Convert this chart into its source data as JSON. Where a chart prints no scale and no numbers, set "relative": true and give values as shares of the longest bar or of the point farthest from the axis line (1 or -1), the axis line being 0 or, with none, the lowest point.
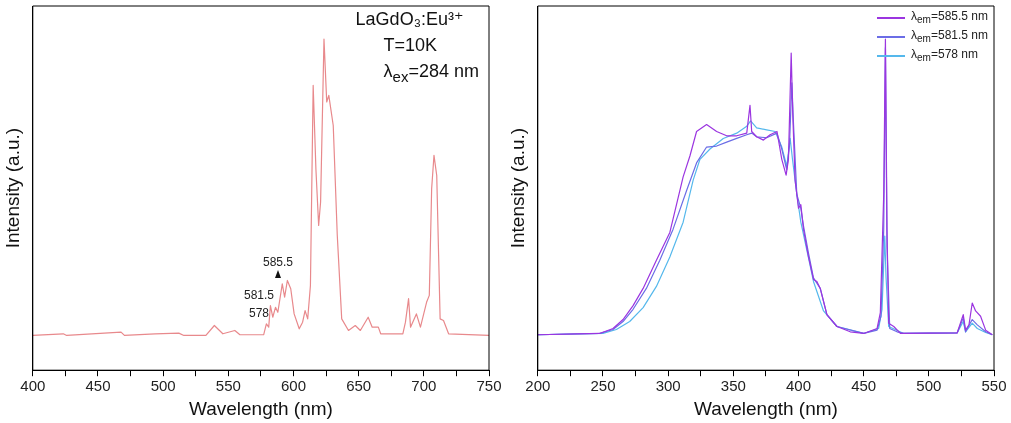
{
  "chart_data": [
    {
      "type": "line",
      "relative": true,
      "xlabel": "Wavelength (nm)",
      "ylabel": "Intensity (a.u.)",
      "tick_labels": "x",
      "marker": "none",
      "line_style": "solid",
      "legend": false,
      "xlim": [
        400,
        750
      ],
      "xticks": [
        400,
        {
          "value": 425,
          "label": null
        },
        450,
        {
          "value": 475,
          "label": null
        },
        500,
        {
          "value": 525,
          "label": null
        },
        550,
        {
          "value": 575,
          "label": null
        },
        600,
        {
          "value": 625,
          "label": null
        },
        650,
        {
          "value": 675,
          "label": null
        },
        700,
        {
          "value": 725,
          "label": null
        },
        750
      ],
      "annotations": [
        "LaGdO₃:Eu³⁺",
        "T=10K",
        "λ$_{ex}$=284 nm",
        "585.5",
        "581.5",
        "578"
      ],
      "series": [
        {
          "color": "#e8898c",
          "x": [
            400,
            423.4,
            426,
            467.7,
            470.3,
            493.8,
            512,
            515.9,
            532.8,
            539.3,
            545.8,
            555,
            558.9,
            577.1,
            579.2,
            581,
            582.3,
            584.1,
            586.2,
            588,
            591.4,
            593.2,
            595.3,
            597.9,
            600.5,
            604.4,
            607,
            608.9,
            610.9,
            613,
            615.1,
            617.2,
            619.3,
            620.8,
            623.4,
            625.5,
            627.1,
            630.5,
            633.6,
            637,
            642.2,
            647.4,
            651.3,
            657.3,
            660.4,
            665.1,
            666.9,
            683.9,
            685.9,
            688.3,
            689.8,
            694.3,
            697.4,
            702.1,
            704.2,
            706,
            707.8,
            709.9,
            712.5,
            715.1,
            719,
            750
          ],
          "values": [
            0.105,
            0.11,
            0.105,
            0.115,
            0.105,
            0.11,
            0.112,
            0.105,
            0.105,
            0.135,
            0.11,
            0.12,
            0.107,
            0.107,
            0.14,
            0.13,
            0.195,
            0.16,
            0.19,
            0.175,
            0.261,
            0.221,
            0.271,
            0.246,
            0.17,
            0.125,
            0.145,
            0.18,
            0.155,
            0.256,
            0.86,
            0.608,
            0.437,
            0.508,
            1,
            0.81,
            0.83,
            0.739,
            0.407,
            0.155,
            0.12,
            0.135,
            0.12,
            0.16,
            0.13,
            0.13,
            0.11,
            0.11,
            0.145,
            0.216,
            0.13,
            0.17,
            0.13,
            0.205,
            0.226,
            0.548,
            0.649,
            0.588,
            0.155,
            0.15,
            0.11,
            0.105
          ]
        }
      ]
    },
    {
      "type": "line",
      "relative": true,
      "xlabel": "Wavelength (nm)",
      "ylabel": "Intensity (a.u.)",
      "tick_labels": "x",
      "marker": "none",
      "line_style": "solid",
      "legend": "top right",
      "xlim": [
        200,
        550
      ],
      "xticks": [
        200,
        {
          "value": 225,
          "label": null
        },
        250,
        {
          "value": 275,
          "label": null
        },
        300,
        {
          "value": 325,
          "label": null
        },
        350,
        {
          "value": 375,
          "label": null
        },
        400,
        {
          "value": 425,
          "label": null
        },
        450,
        {
          "value": 475,
          "label": null
        },
        500,
        {
          "value": 525,
          "label": null
        },
        550
      ],
      "series": [
        {
          "name": "λ$_{em}$=585.5 nm",
          "color": "#9b35e0",
          "x": [
            200,
            247.4,
            257.7,
            265.4,
            273.1,
            280.8,
            291,
            301.3,
            311.5,
            316.7,
            321.8,
            329.5,
            337.2,
            344.9,
            352.6,
            360.3,
            362.8,
            364.1,
            367.9,
            373.1,
            378.2,
            383.5,
            387.2,
            390.5,
            392.3,
            394.4,
            395.6,
            397.4,
            400,
            401.8,
            403.8,
            407.7,
            411.5,
            414.1,
            416.7,
            421.8,
            429.5,
            439.7,
            450,
            460.3,
            462.8,
            465.4,
            466.7,
            467.9,
            469.2,
            473.1,
            478.2,
            521.8,
            526.4,
            528.2,
            530.8,
            533.3,
            535.9,
            539.7,
            543.6,
            548.7
          ],
          "values": [
            0.107,
            0.111,
            0.126,
            0.153,
            0.195,
            0.247,
            0.332,
            0.416,
            0.584,
            0.647,
            0.721,
            0.742,
            0.721,
            0.708,
            0.708,
            0.716,
            0.8,
            0.721,
            0.705,
            0.695,
            0.711,
            0.721,
            0.637,
            0.589,
            0.637,
            0.958,
            0.774,
            0.574,
            0.489,
            0.5,
            0.426,
            0.342,
            0.274,
            0.268,
            0.247,
            0.168,
            0.132,
            0.116,
            0.111,
            0.126,
            0.174,
            0.532,
            1,
            0.426,
            0.142,
            0.132,
            0.111,
            0.113,
            0.168,
            0.121,
            0.137,
            0.203,
            0.179,
            0.163,
            0.121,
            0.107
          ]
        },
        {
          "name": "λ$_{em}$=581.5 nm",
          "color": "#6b6de6",
          "x": [
            200,
            247.4,
            257.7,
            265.4,
            273.1,
            283.3,
            293.6,
            303.8,
            314.1,
            321.8,
            329.5,
            337.2,
            344.9,
            352.6,
            360.3,
            364.1,
            367.9,
            375.6,
            383.5,
            387.2,
            391,
            393.1,
            394.9,
            396.2,
            398.7,
            401.8,
            403.8,
            407.7,
            411.5,
            416.7,
            421.8,
            429.5,
            450,
            460.3,
            463.3,
            465.4,
            466.7,
            467.9,
            470,
            475.6,
            480.8,
            521.8,
            526.4,
            528.2,
            533.3,
            537.2,
            543.6,
            548.7
          ],
          "values": [
            0.107,
            0.111,
            0.123,
            0.147,
            0.184,
            0.247,
            0.332,
            0.426,
            0.542,
            0.626,
            0.674,
            0.677,
            0.689,
            0.7,
            0.711,
            0.716,
            0.705,
            0.702,
            0.716,
            0.668,
            0.605,
            0.679,
            0.868,
            0.742,
            0.532,
            0.489,
            0.437,
            0.353,
            0.279,
            0.247,
            0.168,
            0.132,
            0.111,
            0.121,
            0.163,
            0.426,
            0.974,
            0.374,
            0.126,
            0.116,
            0.111,
            0.113,
            0.158,
            0.116,
            0.153,
            0.137,
            0.116,
            0.107
          ]
        },
        {
          "name": "λ$_{em}$=578 nm",
          "color": "#55b8ec",
          "x": [
            200,
            250,
            260.3,
            270.5,
            280.8,
            291,
            301.3,
            311.5,
            319.2,
            324.4,
            332.1,
            342.3,
            352.6,
            360.3,
            363.3,
            367.9,
            375.6,
            382.1,
            387.2,
            391,
            393.6,
            395.4,
            398.7,
            401.8,
            406.4,
            411.5,
            419.2,
            429.5,
            450,
            461.5,
            464.1,
            466.2,
            467.2,
            469.2,
            480.8,
            521.8,
            526.4,
            528.2,
            533.3,
            537.2,
            543.6,
            548.7
          ],
          "values": [
            0.107,
            0.111,
            0.123,
            0.147,
            0.189,
            0.253,
            0.342,
            0.447,
            0.574,
            0.637,
            0.668,
            0.7,
            0.716,
            0.737,
            0.753,
            0.732,
            0.726,
            0.721,
            0.674,
            0.616,
            0.7,
            0.637,
            0.532,
            0.447,
            0.363,
            0.268,
            0.179,
            0.132,
            0.111,
            0.126,
            0.184,
            0.405,
            0.279,
            0.132,
            0.111,
            0.113,
            0.147,
            0.116,
            0.142,
            0.126,
            0.114,
            0.107
          ]
        }
      ]
    }
  ]
}
